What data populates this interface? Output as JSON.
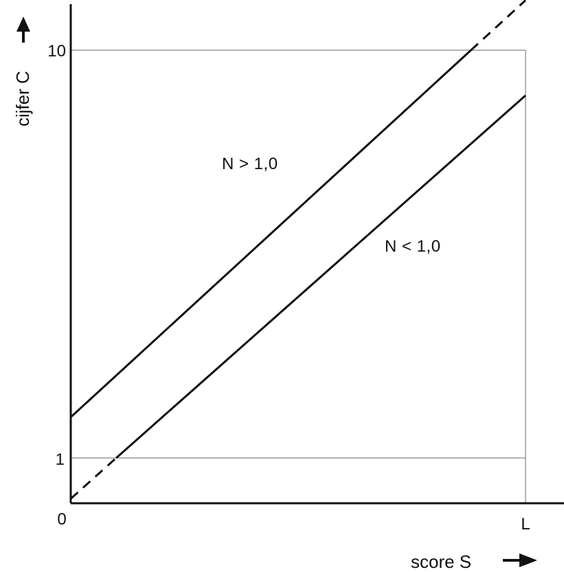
{
  "chart_data": {
    "type": "line",
    "xlabel": "score S",
    "ylabel": "cijfer C",
    "x_ticks": [
      "0",
      "L"
    ],
    "y_ticks": [
      "1",
      "10"
    ],
    "xlim": [
      0,
      1
    ],
    "ylim": [
      0,
      10
    ],
    "grid": false,
    "reference_lines": {
      "y": [
        1,
        10
      ],
      "x": [
        1
      ]
    },
    "series": [
      {
        "label": "N > 1,0",
        "solid": [
          [
            0,
            1.9
          ],
          [
            0.88,
            10
          ]
        ],
        "dashed": [
          [
            0.88,
            10
          ],
          [
            1,
            11.1
          ]
        ]
      },
      {
        "label": "N < 1,0",
        "solid": [
          [
            0.1,
            1
          ],
          [
            1,
            9.0
          ]
        ],
        "dashed": [
          [
            0,
            0.1
          ],
          [
            0.1,
            1
          ]
        ]
      }
    ],
    "annotations": [
      {
        "text": "N > 1,0",
        "series": 0
      },
      {
        "text": "N < 1,0",
        "series": 1
      }
    ]
  }
}
